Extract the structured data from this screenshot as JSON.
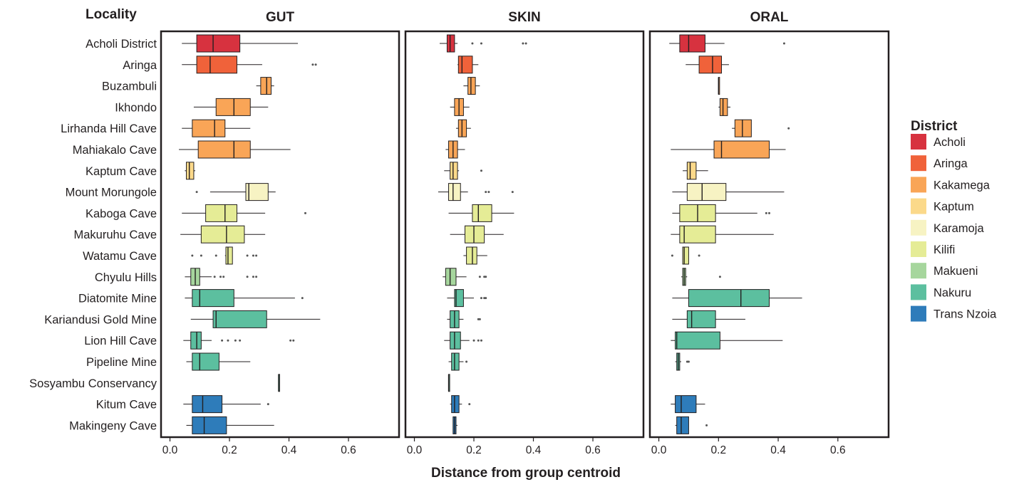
{
  "chart_data": {
    "type": "boxplot",
    "y_axis_title": "Locality",
    "x_axis_title": "Distance from group centroid",
    "xlim": [
      -0.03,
      0.77
    ],
    "x_ticks": [
      0.0,
      0.2,
      0.4,
      0.6
    ],
    "x_tick_labels": [
      "0.0",
      "0.2",
      "0.4",
      "0.6"
    ],
    "categories": [
      "Acholi District",
      "Aringa",
      "Buzambuli",
      "Ikhondo",
      "Lirhanda Hill Cave",
      "Mahiakalo Cave",
      "Kaptum Cave",
      "Mount Morungole",
      "Kaboga Cave",
      "Makuruhu Cave",
      "Watamu Cave",
      "Chyulu Hills",
      "Diatomite Mine",
      "Kariandusi Gold Mine",
      "Lion Hill Cave",
      "Pipeline Mine",
      "Sosyambu Conservancy",
      "Kitum Cave",
      "Makingeny Cave"
    ],
    "category_district": [
      "Acholi",
      "Aringa",
      "Kakamega",
      "Kakamega",
      "Kakamega",
      "Kakamega",
      "Kaptum",
      "Karamoja",
      "Kilifi",
      "Kilifi",
      "Kilifi",
      "Makueni",
      "Nakuru",
      "Nakuru",
      "Nakuru",
      "Nakuru",
      "Nakuru",
      "Trans Nzoia",
      "Trans Nzoia"
    ],
    "legend": {
      "title": "District",
      "position": "right",
      "entries": [
        {
          "name": "Acholi",
          "color": "#d7323f"
        },
        {
          "name": "Aringa",
          "color": "#f0623a"
        },
        {
          "name": "Kakamega",
          "color": "#f9a557"
        },
        {
          "name": "Kaptum",
          "color": "#fbd98a"
        },
        {
          "name": "Karamoja",
          "color": "#f7f3c3"
        },
        {
          "name": "Kilifi",
          "color": "#e5ec96"
        },
        {
          "name": "Makueni",
          "color": "#a6d69d"
        },
        {
          "name": "Nakuru",
          "color": "#5cbf9f"
        },
        {
          "name": "Trans Nzoia",
          "color": "#2e7cba"
        }
      ]
    },
    "panels": [
      {
        "title": "GUT",
        "boxes": [
          {
            "min": 0.04,
            "q1": 0.09,
            "median": 0.145,
            "q3": 0.235,
            "max": 0.43,
            "outliers": []
          },
          {
            "min": 0.04,
            "q1": 0.09,
            "median": 0.135,
            "q3": 0.225,
            "max": 0.31,
            "outliers": [
              0.48,
              0.49
            ]
          },
          {
            "min": 0.29,
            "q1": 0.305,
            "median": 0.325,
            "q3": 0.34,
            "max": 0.35,
            "outliers": []
          },
          {
            "min": 0.08,
            "q1": 0.155,
            "median": 0.215,
            "q3": 0.27,
            "max": 0.33,
            "outliers": []
          },
          {
            "min": 0.04,
            "q1": 0.075,
            "median": 0.15,
            "q3": 0.185,
            "max": 0.27,
            "outliers": []
          },
          {
            "min": 0.03,
            "q1": 0.095,
            "median": 0.215,
            "q3": 0.27,
            "max": 0.405,
            "outliers": []
          },
          {
            "min": 0.05,
            "q1": 0.055,
            "median": 0.065,
            "q3": 0.08,
            "max": 0.085,
            "outliers": []
          },
          {
            "min": 0.135,
            "q1": 0.255,
            "median": 0.265,
            "q3": 0.33,
            "max": 0.355,
            "outliers": [
              0.09
            ]
          },
          {
            "min": 0.04,
            "q1": 0.12,
            "median": 0.185,
            "q3": 0.225,
            "max": 0.32,
            "outliers": [
              0.455
            ]
          },
          {
            "min": 0.035,
            "q1": 0.105,
            "median": 0.19,
            "q3": 0.25,
            "max": 0.32,
            "outliers": []
          },
          {
            "min": 0.185,
            "q1": 0.188,
            "median": 0.195,
            "q3": 0.21,
            "max": 0.21,
            "outliers": [
              0.075,
              0.105,
              0.155,
              0.26,
              0.28,
              0.29
            ]
          },
          {
            "min": 0.05,
            "q1": 0.07,
            "median": 0.085,
            "q3": 0.1,
            "max": 0.14,
            "outliers": [
              0.15,
              0.17,
              0.18,
              0.26,
              0.28,
              0.29
            ]
          },
          {
            "min": 0.05,
            "q1": 0.075,
            "median": 0.1,
            "q3": 0.215,
            "max": 0.42,
            "outliers": [
              0.445
            ]
          },
          {
            "min": 0.07,
            "q1": 0.145,
            "median": 0.155,
            "q3": 0.325,
            "max": 0.505,
            "outliers": []
          },
          {
            "min": 0.045,
            "q1": 0.07,
            "median": 0.09,
            "q3": 0.105,
            "max": 0.14,
            "outliers": [
              0.175,
              0.195,
              0.22,
              0.235,
              0.405,
              0.415
            ]
          },
          {
            "min": 0.055,
            "q1": 0.075,
            "median": 0.1,
            "q3": 0.165,
            "max": 0.27,
            "outliers": []
          },
          {
            "min": 0.365,
            "q1": 0.365,
            "median": 0.365,
            "q3": 0.365,
            "max": 0.365,
            "outliers": []
          },
          {
            "min": 0.045,
            "q1": 0.075,
            "median": 0.11,
            "q3": 0.175,
            "max": 0.305,
            "outliers": [
              0.33
            ]
          },
          {
            "min": 0.055,
            "q1": 0.075,
            "median": 0.115,
            "q3": 0.19,
            "max": 0.35,
            "outliers": []
          }
        ]
      },
      {
        "title": "SKIN",
        "boxes": [
          {
            "min": 0.085,
            "q1": 0.11,
            "median": 0.12,
            "q3": 0.135,
            "max": 0.145,
            "outliers": [
              0.195,
              0.225,
              0.365,
              0.375
            ]
          },
          {
            "min": 0.145,
            "q1": 0.148,
            "median": 0.16,
            "q3": 0.195,
            "max": 0.215,
            "outliers": []
          },
          {
            "min": 0.165,
            "q1": 0.18,
            "median": 0.19,
            "q3": 0.205,
            "max": 0.22,
            "outliers": []
          },
          {
            "min": 0.12,
            "q1": 0.135,
            "median": 0.15,
            "q3": 0.165,
            "max": 0.185,
            "outliers": []
          },
          {
            "min": 0.14,
            "q1": 0.148,
            "median": 0.16,
            "q3": 0.175,
            "max": 0.19,
            "outliers": []
          },
          {
            "min": 0.105,
            "q1": 0.115,
            "median": 0.13,
            "q3": 0.145,
            "max": 0.17,
            "outliers": []
          },
          {
            "min": 0.1,
            "q1": 0.12,
            "median": 0.13,
            "q3": 0.145,
            "max": 0.15,
            "outliers": [
              0.225
            ]
          },
          {
            "min": 0.08,
            "q1": 0.115,
            "median": 0.13,
            "q3": 0.155,
            "max": 0.18,
            "outliers": [
              0.24,
              0.25,
              0.33
            ]
          },
          {
            "min": 0.115,
            "q1": 0.195,
            "median": 0.215,
            "q3": 0.26,
            "max": 0.335,
            "outliers": []
          },
          {
            "min": 0.12,
            "q1": 0.17,
            "median": 0.2,
            "q3": 0.235,
            "max": 0.3,
            "outliers": []
          },
          {
            "min": 0.165,
            "q1": 0.175,
            "median": 0.195,
            "q3": 0.21,
            "max": 0.245,
            "outliers": []
          },
          {
            "min": 0.095,
            "q1": 0.105,
            "median": 0.12,
            "q3": 0.14,
            "max": 0.175,
            "outliers": [
              0.22,
              0.235,
              0.24
            ]
          },
          {
            "min": 0.11,
            "q1": 0.135,
            "median": 0.14,
            "q3": 0.165,
            "max": 0.2,
            "outliers": [
              0.225,
              0.235,
              0.24
            ]
          },
          {
            "min": 0.11,
            "q1": 0.12,
            "median": 0.135,
            "q3": 0.15,
            "max": 0.165,
            "outliers": [
              0.215,
              0.22
            ]
          },
          {
            "min": 0.1,
            "q1": 0.12,
            "median": 0.135,
            "q3": 0.155,
            "max": 0.185,
            "outliers": [
              0.2,
              0.215,
              0.225
            ]
          },
          {
            "min": 0.115,
            "q1": 0.125,
            "median": 0.135,
            "q3": 0.15,
            "max": 0.165,
            "outliers": [
              0.175
            ]
          },
          {
            "min": 0.115,
            "q1": 0.115,
            "median": 0.115,
            "q3": 0.115,
            "max": 0.115,
            "outliers": []
          },
          {
            "min": 0.12,
            "q1": 0.125,
            "median": 0.135,
            "q3": 0.15,
            "max": 0.16,
            "outliers": [
              0.185
            ]
          },
          {
            "min": 0.13,
            "q1": 0.13,
            "median": 0.135,
            "q3": 0.14,
            "max": 0.145,
            "outliers": []
          }
        ]
      },
      {
        "title": "ORAL",
        "boxes": [
          {
            "min": 0.035,
            "q1": 0.07,
            "median": 0.1,
            "q3": 0.155,
            "max": 0.22,
            "outliers": [
              0.42
            ]
          },
          {
            "min": 0.09,
            "q1": 0.135,
            "median": 0.18,
            "q3": 0.21,
            "max": 0.235,
            "outliers": []
          },
          {
            "min": 0.2,
            "q1": 0.2,
            "median": 0.2,
            "q3": 0.2,
            "max": 0.2,
            "outliers": []
          },
          {
            "min": 0.2,
            "q1": 0.205,
            "median": 0.215,
            "q3": 0.23,
            "max": 0.24,
            "outliers": []
          },
          {
            "min": 0.245,
            "q1": 0.255,
            "median": 0.28,
            "q3": 0.31,
            "max": 0.31,
            "outliers": [
              0.435
            ]
          },
          {
            "min": 0.04,
            "q1": 0.185,
            "median": 0.21,
            "q3": 0.37,
            "max": 0.425,
            "outliers": []
          },
          {
            "min": 0.08,
            "q1": 0.095,
            "median": 0.105,
            "q3": 0.125,
            "max": 0.165,
            "outliers": []
          },
          {
            "min": 0.045,
            "q1": 0.095,
            "median": 0.145,
            "q3": 0.225,
            "max": 0.42,
            "outliers": []
          },
          {
            "min": 0.045,
            "q1": 0.07,
            "median": 0.13,
            "q3": 0.19,
            "max": 0.33,
            "outliers": [
              0.36,
              0.37
            ]
          },
          {
            "min": 0.04,
            "q1": 0.07,
            "median": 0.085,
            "q3": 0.19,
            "max": 0.385,
            "outliers": []
          },
          {
            "min": 0.08,
            "q1": 0.08,
            "median": 0.085,
            "q3": 0.1,
            "max": 0.1,
            "outliers": [
              0.045,
              0.135
            ]
          },
          {
            "min": 0.075,
            "q1": 0.08,
            "median": 0.085,
            "q3": 0.09,
            "max": 0.095,
            "outliers": [
              0.205
            ]
          },
          {
            "min": 0.045,
            "q1": 0.1,
            "median": 0.275,
            "q3": 0.37,
            "max": 0.48,
            "outliers": []
          },
          {
            "min": 0.045,
            "q1": 0.095,
            "median": 0.11,
            "q3": 0.19,
            "max": 0.29,
            "outliers": []
          },
          {
            "min": 0.04,
            "q1": 0.055,
            "median": 0.06,
            "q3": 0.205,
            "max": 0.415,
            "outliers": []
          },
          {
            "min": 0.055,
            "q1": 0.06,
            "median": 0.065,
            "q3": 0.07,
            "max": 0.075,
            "outliers": [
              0.095,
              0.1
            ]
          },
          null,
          {
            "min": 0.04,
            "q1": 0.055,
            "median": 0.075,
            "q3": 0.125,
            "max": 0.155,
            "outliers": []
          },
          {
            "min": 0.055,
            "q1": 0.06,
            "median": 0.075,
            "q3": 0.1,
            "max": 0.1,
            "outliers": [
              0.16
            ]
          }
        ]
      }
    ]
  }
}
